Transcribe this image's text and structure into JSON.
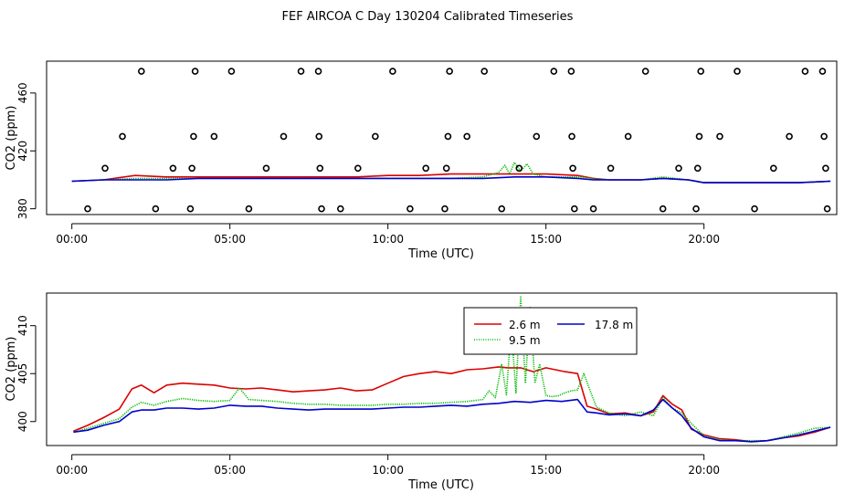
{
  "title": "FEF AIRCOA C  Day 130204  Calibrated Timeseries",
  "colors": {
    "s1": "#dd0000",
    "s2": "#00bb00",
    "s3": "#0000cc",
    "axis": "#000000"
  },
  "chart_data": [
    {
      "type": "scatter",
      "title": "",
      "xlabel": "Time (UTC)",
      "ylabel": "CO2 (ppm)",
      "xlim": [
        -0.8,
        24.2
      ],
      "ylim": [
        376,
        482
      ],
      "x_ticks": [
        0,
        5,
        10,
        15,
        20
      ],
      "x_tick_labels": [
        "00:00",
        "05:00",
        "10:00",
        "15:00",
        "20:00"
      ],
      "y_ticks": [
        380,
        420,
        460
      ],
      "y_tick_labels": [
        "380",
        "420",
        "460"
      ],
      "grid": false,
      "legend": "none",
      "markers": [
        {
          "x": 0.5,
          "y": 380
        },
        {
          "x": 1.05,
          "y": 408
        },
        {
          "x": 1.6,
          "y": 430
        },
        {
          "x": 2.2,
          "y": 475
        },
        {
          "x": 2.65,
          "y": 380
        },
        {
          "x": 3.2,
          "y": 408
        },
        {
          "x": 3.75,
          "y": 380
        },
        {
          "x": 3.8,
          "y": 408
        },
        {
          "x": 3.85,
          "y": 430
        },
        {
          "x": 3.9,
          "y": 475
        },
        {
          "x": 4.5,
          "y": 430
        },
        {
          "x": 5.05,
          "y": 475
        },
        {
          "x": 5.6,
          "y": 380
        },
        {
          "x": 6.15,
          "y": 408
        },
        {
          "x": 6.7,
          "y": 430
        },
        {
          "x": 7.25,
          "y": 475
        },
        {
          "x": 7.8,
          "y": 475
        },
        {
          "x": 7.82,
          "y": 430
        },
        {
          "x": 7.85,
          "y": 408
        },
        {
          "x": 7.9,
          "y": 380
        },
        {
          "x": 8.5,
          "y": 380
        },
        {
          "x": 9.05,
          "y": 408
        },
        {
          "x": 9.6,
          "y": 430
        },
        {
          "x": 10.15,
          "y": 475
        },
        {
          "x": 10.7,
          "y": 380
        },
        {
          "x": 11.2,
          "y": 408
        },
        {
          "x": 11.8,
          "y": 380
        },
        {
          "x": 11.85,
          "y": 408
        },
        {
          "x": 11.9,
          "y": 430
        },
        {
          "x": 11.95,
          "y": 475
        },
        {
          "x": 12.5,
          "y": 430
        },
        {
          "x": 13.05,
          "y": 475
        },
        {
          "x": 13.6,
          "y": 380
        },
        {
          "x": 14.15,
          "y": 408
        },
        {
          "x": 14.7,
          "y": 430
        },
        {
          "x": 15.25,
          "y": 475
        },
        {
          "x": 15.8,
          "y": 475
        },
        {
          "x": 15.82,
          "y": 430
        },
        {
          "x": 15.85,
          "y": 408
        },
        {
          "x": 15.9,
          "y": 380
        },
        {
          "x": 16.5,
          "y": 380
        },
        {
          "x": 17.05,
          "y": 408
        },
        {
          "x": 17.6,
          "y": 430
        },
        {
          "x": 18.15,
          "y": 475
        },
        {
          "x": 18.7,
          "y": 380
        },
        {
          "x": 19.2,
          "y": 408
        },
        {
          "x": 19.75,
          "y": 380
        },
        {
          "x": 19.8,
          "y": 408
        },
        {
          "x": 19.85,
          "y": 430
        },
        {
          "x": 19.9,
          "y": 475
        },
        {
          "x": 20.5,
          "y": 430
        },
        {
          "x": 21.05,
          "y": 475
        },
        {
          "x": 21.6,
          "y": 380
        },
        {
          "x": 22.2,
          "y": 408
        },
        {
          "x": 22.7,
          "y": 430
        },
        {
          "x": 23.2,
          "y": 475
        },
        {
          "x": 23.75,
          "y": 475
        },
        {
          "x": 23.8,
          "y": 430
        },
        {
          "x": 23.85,
          "y": 408
        },
        {
          "x": 23.9,
          "y": 380
        }
      ],
      "series": [
        {
          "name": "2.6 m",
          "color": "#dd0000",
          "style": "solid",
          "x": [
            0,
            1,
            2,
            3,
            4,
            5,
            6,
            7,
            8,
            9,
            10,
            11,
            12,
            13,
            13.5,
            14,
            15,
            16,
            16.5,
            17,
            18,
            18.7,
            19.5,
            20,
            21,
            22,
            23,
            24
          ],
          "y": [
            399,
            400,
            403,
            402,
            402,
            402,
            402,
            402,
            402,
            402,
            403,
            403,
            404,
            404,
            404,
            404,
            404,
            403,
            401,
            400,
            400,
            401,
            400,
            398,
            398,
            398,
            398,
            399
          ]
        },
        {
          "name": "9.5 m",
          "color": "#00bb00",
          "style": "dotted",
          "x": [
            0,
            1,
            2,
            3,
            4,
            5,
            6,
            7,
            8,
            9,
            10,
            11,
            12,
            13,
            13.5,
            13.7,
            13.85,
            14,
            14.2,
            14.4,
            14.6,
            15,
            16,
            16.5,
            17,
            18,
            18.7,
            19.5,
            20,
            21,
            22,
            23,
            24
          ],
          "y": [
            399,
            400,
            401,
            401,
            401,
            401,
            401,
            401,
            401,
            401,
            401,
            401,
            401,
            402,
            405,
            410,
            404,
            412,
            406,
            411,
            404,
            402,
            402,
            401,
            400,
            400,
            402,
            400,
            398,
            398,
            398,
            398,
            399
          ]
        },
        {
          "name": "17.8 m",
          "color": "#0000cc",
          "style": "solid",
          "x": [
            0,
            1,
            2,
            3,
            4,
            5,
            6,
            7,
            8,
            9,
            10,
            11,
            12,
            13,
            14,
            15,
            16,
            16.5,
            17,
            18,
            18.7,
            19.5,
            20,
            21,
            22,
            23,
            24
          ],
          "y": [
            399,
            400,
            400,
            400,
            401,
            401,
            401,
            401,
            401,
            401,
            401,
            401,
            401,
            401,
            402,
            402,
            401,
            400,
            400,
            400,
            401,
            400,
            398,
            398,
            398,
            398,
            399
          ]
        }
      ]
    },
    {
      "type": "line",
      "title": "",
      "xlabel": "Time (UTC)",
      "ylabel": "CO2 (ppm)",
      "xlim": [
        -0.8,
        24.2
      ],
      "ylim": [
        397.5,
        413.4
      ],
      "x_ticks": [
        0,
        5,
        10,
        15,
        20
      ],
      "x_tick_labels": [
        "00:00",
        "05:00",
        "10:00",
        "15:00",
        "20:00"
      ],
      "y_ticks": [
        400,
        405,
        410
      ],
      "y_tick_labels": [
        "400",
        "405",
        "410"
      ],
      "grid": false,
      "legend": "top-center",
      "series": [
        {
          "name": "2.6 m",
          "color": "#dd0000",
          "style": "solid",
          "x": [
            0.05,
            0.5,
            1.0,
            1.5,
            1.9,
            2.2,
            2.6,
            3.0,
            3.5,
            4.0,
            4.5,
            5.0,
            5.5,
            6.0,
            6.5,
            7.0,
            7.5,
            8.0,
            8.5,
            9.0,
            9.5,
            10.0,
            10.5,
            11.0,
            11.5,
            12.0,
            12.5,
            13.0,
            13.5,
            13.8,
            14.2,
            14.6,
            15.0,
            15.3,
            15.6,
            16.0,
            16.3,
            16.6,
            17.0,
            17.5,
            18.0,
            18.4,
            18.7,
            19.0,
            19.3,
            19.6,
            20.0,
            20.5,
            21.0,
            21.5,
            22.0,
            22.5,
            23.0,
            23.5,
            24.0
          ],
          "y": [
            399.0,
            399.6,
            400.4,
            401.3,
            403.4,
            403.8,
            403.0,
            403.8,
            404.0,
            403.9,
            403.8,
            403.5,
            403.4,
            403.5,
            403.3,
            403.1,
            403.2,
            403.3,
            403.5,
            403.2,
            403.3,
            404.0,
            404.7,
            405.0,
            405.2,
            405.0,
            405.4,
            405.5,
            405.7,
            405.6,
            405.6,
            405.2,
            405.6,
            405.4,
            405.2,
            405.0,
            401.6,
            401.3,
            400.8,
            400.9,
            400.6,
            401.0,
            402.7,
            401.8,
            401.2,
            399.2,
            398.6,
            398.2,
            398.1,
            397.9,
            398.0,
            398.3,
            398.5,
            398.9,
            399.4
          ]
        },
        {
          "name": "9.5 m",
          "color": "#00bb00",
          "style": "dotted",
          "x": [
            0.05,
            0.5,
            1.0,
            1.5,
            1.9,
            2.2,
            2.6,
            3.0,
            3.5,
            4.0,
            4.5,
            5.0,
            5.3,
            5.6,
            6.0,
            6.5,
            7.0,
            7.5,
            8.0,
            8.5,
            9.0,
            9.5,
            10.0,
            10.5,
            11.0,
            11.5,
            12.0,
            12.5,
            13.0,
            13.2,
            13.4,
            13.6,
            13.75,
            13.9,
            14.05,
            14.2,
            14.35,
            14.5,
            14.65,
            14.8,
            15.0,
            15.2,
            15.4,
            15.6,
            15.8,
            16.0,
            16.2,
            16.4,
            16.6,
            17.0,
            17.5,
            18.0,
            18.4,
            18.7,
            19.0,
            19.3,
            19.6,
            20.0,
            20.5,
            21.0,
            21.5,
            22.0,
            22.5,
            23.0,
            23.5,
            24.0
          ],
          "y": [
            398.9,
            399.3,
            399.8,
            400.3,
            401.5,
            402.0,
            401.7,
            402.1,
            402.4,
            402.2,
            402.1,
            402.2,
            403.5,
            402.3,
            402.2,
            402.1,
            401.9,
            401.8,
            401.8,
            401.7,
            401.7,
            401.7,
            401.8,
            401.8,
            401.9,
            401.9,
            402.0,
            402.1,
            402.3,
            403.2,
            402.5,
            406.0,
            402.8,
            410.0,
            403.0,
            413.0,
            404.0,
            412.0,
            404.0,
            406.0,
            402.7,
            402.6,
            402.7,
            403.0,
            403.2,
            403.3,
            405.0,
            403.2,
            401.5,
            400.9,
            400.6,
            401.0,
            400.6,
            402.5,
            401.4,
            400.9,
            399.8,
            398.5,
            398.1,
            398.0,
            398.0,
            398.0,
            398.4,
            398.8,
            399.3,
            399.4
          ]
        },
        {
          "name": "17.8 m",
          "color": "#0000cc",
          "style": "solid",
          "x": [
            0.05,
            0.5,
            1.0,
            1.5,
            1.9,
            2.2,
            2.6,
            3.0,
            3.5,
            4.0,
            4.5,
            5.0,
            5.5,
            6.0,
            6.5,
            7.0,
            7.5,
            8.0,
            8.5,
            9.0,
            9.5,
            10.0,
            10.5,
            11.0,
            11.5,
            12.0,
            12.5,
            13.0,
            13.5,
            14.0,
            14.5,
            15.0,
            15.5,
            16.0,
            16.3,
            16.6,
            17.0,
            17.5,
            18.0,
            18.4,
            18.7,
            19.0,
            19.3,
            19.6,
            20.0,
            20.5,
            21.0,
            21.5,
            22.0,
            22.5,
            23.0,
            23.5,
            24.0
          ],
          "y": [
            398.9,
            399.1,
            399.6,
            400.0,
            401.0,
            401.2,
            401.2,
            401.4,
            401.4,
            401.3,
            401.4,
            401.7,
            401.6,
            401.6,
            401.4,
            401.3,
            401.2,
            401.3,
            401.3,
            401.3,
            401.3,
            401.4,
            401.5,
            401.5,
            401.6,
            401.7,
            401.6,
            401.8,
            401.9,
            402.1,
            402.0,
            402.2,
            402.1,
            402.3,
            401.0,
            400.9,
            400.7,
            400.8,
            400.6,
            401.2,
            402.3,
            401.4,
            400.6,
            399.3,
            398.4,
            398.0,
            398.0,
            397.9,
            398.0,
            398.3,
            398.6,
            399.0,
            399.4
          ]
        }
      ]
    }
  ]
}
